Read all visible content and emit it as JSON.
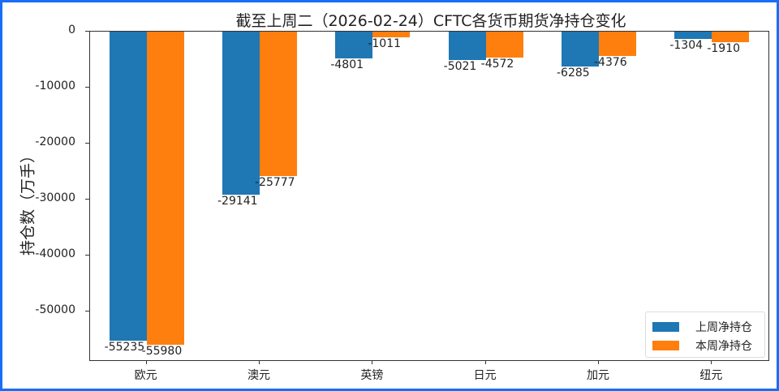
{
  "chart_data": {
    "type": "bar",
    "title": "截至上周二（2026-02-24）CFTC各货币期货净持仓变化",
    "xlabel": "",
    "ylabel": "持仓数（万手）",
    "categories": [
      "欧元",
      "澳元",
      "英镑",
      "日元",
      "加元",
      "纽元"
    ],
    "series": [
      {
        "name": "上周净持仓",
        "color": "#1f77b4",
        "values": [
          -55235,
          -29141,
          -4801,
          -5021,
          -6285,
          -1304
        ]
      },
      {
        "name": "本周净持仓",
        "color": "#ff7f0e",
        "values": [
          -55980,
          -25777,
          -1011,
          -4572,
          -4376,
          -1910
        ]
      }
    ],
    "yticks": [
      "0",
      "-10000",
      "-20000",
      "-30000",
      "-40000",
      "-50000"
    ],
    "ylim": [
      -58700,
      0
    ],
    "grid": false,
    "legend_position": "lower right"
  }
}
